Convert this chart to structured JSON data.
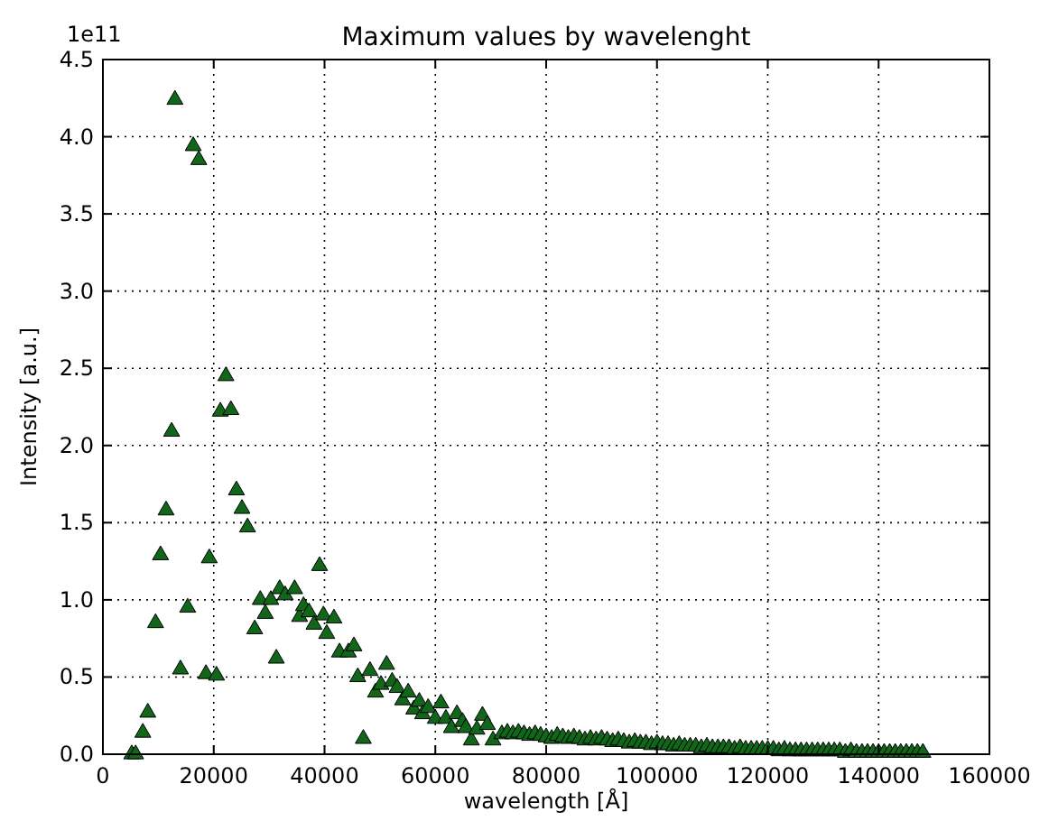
{
  "chart_data": {
    "type": "scatter",
    "title": "Maximum values by wavelenght",
    "xlabel": "wavelength [Å]",
    "ylabel": "Intensity [a.u.]",
    "annotations": [
      "1e11"
    ],
    "xlim": [
      0,
      160000
    ],
    "xticks": [
      0,
      20000,
      40000,
      60000,
      80000,
      100000,
      120000,
      140000,
      160000
    ],
    "ylim": [
      0,
      4.5
    ],
    "yticks": [
      {
        "value": 0,
        "label": "0.0"
      },
      {
        "value": 0.5,
        "label": "0.5"
      },
      {
        "value": 1,
        "label": "1.0"
      },
      {
        "value": 1.5,
        "label": "1.5"
      },
      {
        "value": 2,
        "label": "2.0"
      },
      {
        "value": 2.5,
        "label": "2.5"
      },
      {
        "value": 3,
        "label": "3.0"
      },
      {
        "value": 3.5,
        "label": "3.5"
      },
      {
        "value": 4,
        "label": "4.0"
      },
      {
        "value": 4.5,
        "label": "4.5"
      }
    ],
    "grid": true,
    "marker": "triangle",
    "series": [
      {
        "color": "#11661a",
        "x": [
          5200,
          5900,
          7200,
          8100,
          9500,
          10400,
          11400,
          12400,
          13000,
          14000,
          15300,
          16300,
          17300,
          18600,
          19200,
          20500,
          21200,
          22200,
          23100,
          24100,
          25100,
          26100,
          27400,
          28400,
          29300,
          30300,
          31300,
          31900,
          32900,
          34600,
          35500,
          36200,
          37200,
          38100,
          39100,
          39800,
          40400,
          41700,
          42700,
          44300,
          45300,
          46000,
          47000,
          48200,
          49200,
          50200,
          51200,
          52200,
          53100,
          54100,
          55100,
          56100,
          57100,
          57700,
          58700,
          60000,
          61000,
          61900,
          62900,
          63900,
          64900,
          65500,
          66500,
          67500,
          68500,
          69400,
          70400,
          72000,
          73000,
          74000,
          75000,
          76000,
          77000,
          78000,
          79000,
          80000,
          81000,
          82000,
          83000,
          84000,
          85000,
          86000,
          87000,
          88000,
          89000,
          90000,
          91000,
          92000,
          93000,
          94000,
          95000,
          96000,
          97000,
          98000,
          99000,
          100000,
          101000,
          102000,
          103000,
          104000,
          105000,
          106000,
          107000,
          108000,
          109000,
          110000,
          111000,
          112000,
          113000,
          114000,
          115000,
          116000,
          117000,
          118000,
          119000,
          120000,
          121000,
          122000,
          123000,
          124000,
          125000,
          126000,
          127000,
          128000,
          129000,
          130000,
          131000,
          132000,
          133000,
          134000,
          135000,
          136000,
          137000,
          138000,
          139000,
          140000,
          141000,
          142000,
          143000,
          144000,
          145000,
          146000,
          147000,
          148000
        ],
        "values": [
          0.0,
          0.0,
          0.14,
          0.27,
          0.85,
          1.29,
          1.58,
          2.09,
          4.24,
          0.55,
          0.95,
          3.94,
          3.85,
          0.52,
          1.27,
          0.51,
          2.22,
          2.45,
          2.23,
          1.71,
          1.59,
          1.47,
          0.81,
          1.0,
          0.91,
          1.0,
          0.62,
          1.07,
          1.03,
          1.07,
          0.89,
          0.96,
          0.92,
          0.84,
          1.22,
          0.9,
          0.78,
          0.88,
          0.66,
          0.66,
          0.7,
          0.5,
          0.1,
          0.54,
          0.4,
          0.45,
          0.58,
          0.47,
          0.43,
          0.35,
          0.4,
          0.29,
          0.34,
          0.26,
          0.3,
          0.23,
          0.33,
          0.23,
          0.17,
          0.26,
          0.21,
          0.17,
          0.09,
          0.16,
          0.25,
          0.19,
          0.09,
          0.13,
          0.14,
          0.13,
          0.14,
          0.13,
          0.12,
          0.13,
          0.12,
          0.11,
          0.1,
          0.12,
          0.11,
          0.1,
          0.11,
          0.1,
          0.09,
          0.1,
          0.09,
          0.1,
          0.09,
          0.08,
          0.09,
          0.08,
          0.07,
          0.08,
          0.07,
          0.07,
          0.06,
          0.07,
          0.06,
          0.06,
          0.05,
          0.06,
          0.05,
          0.05,
          0.05,
          0.04,
          0.05,
          0.04,
          0.04,
          0.04,
          0.04,
          0.03,
          0.04,
          0.03,
          0.03,
          0.03,
          0.03,
          0.03,
          0.03,
          0.02,
          0.03,
          0.02,
          0.02,
          0.02,
          0.02,
          0.02,
          0.02,
          0.02,
          0.02,
          0.02,
          0.02,
          0.01,
          0.02,
          0.01,
          0.01,
          0.01,
          0.01,
          0.01,
          0.01,
          0.01,
          0.01,
          0.01,
          0.01,
          0.01,
          0.01,
          0.01
        ]
      }
    ]
  }
}
